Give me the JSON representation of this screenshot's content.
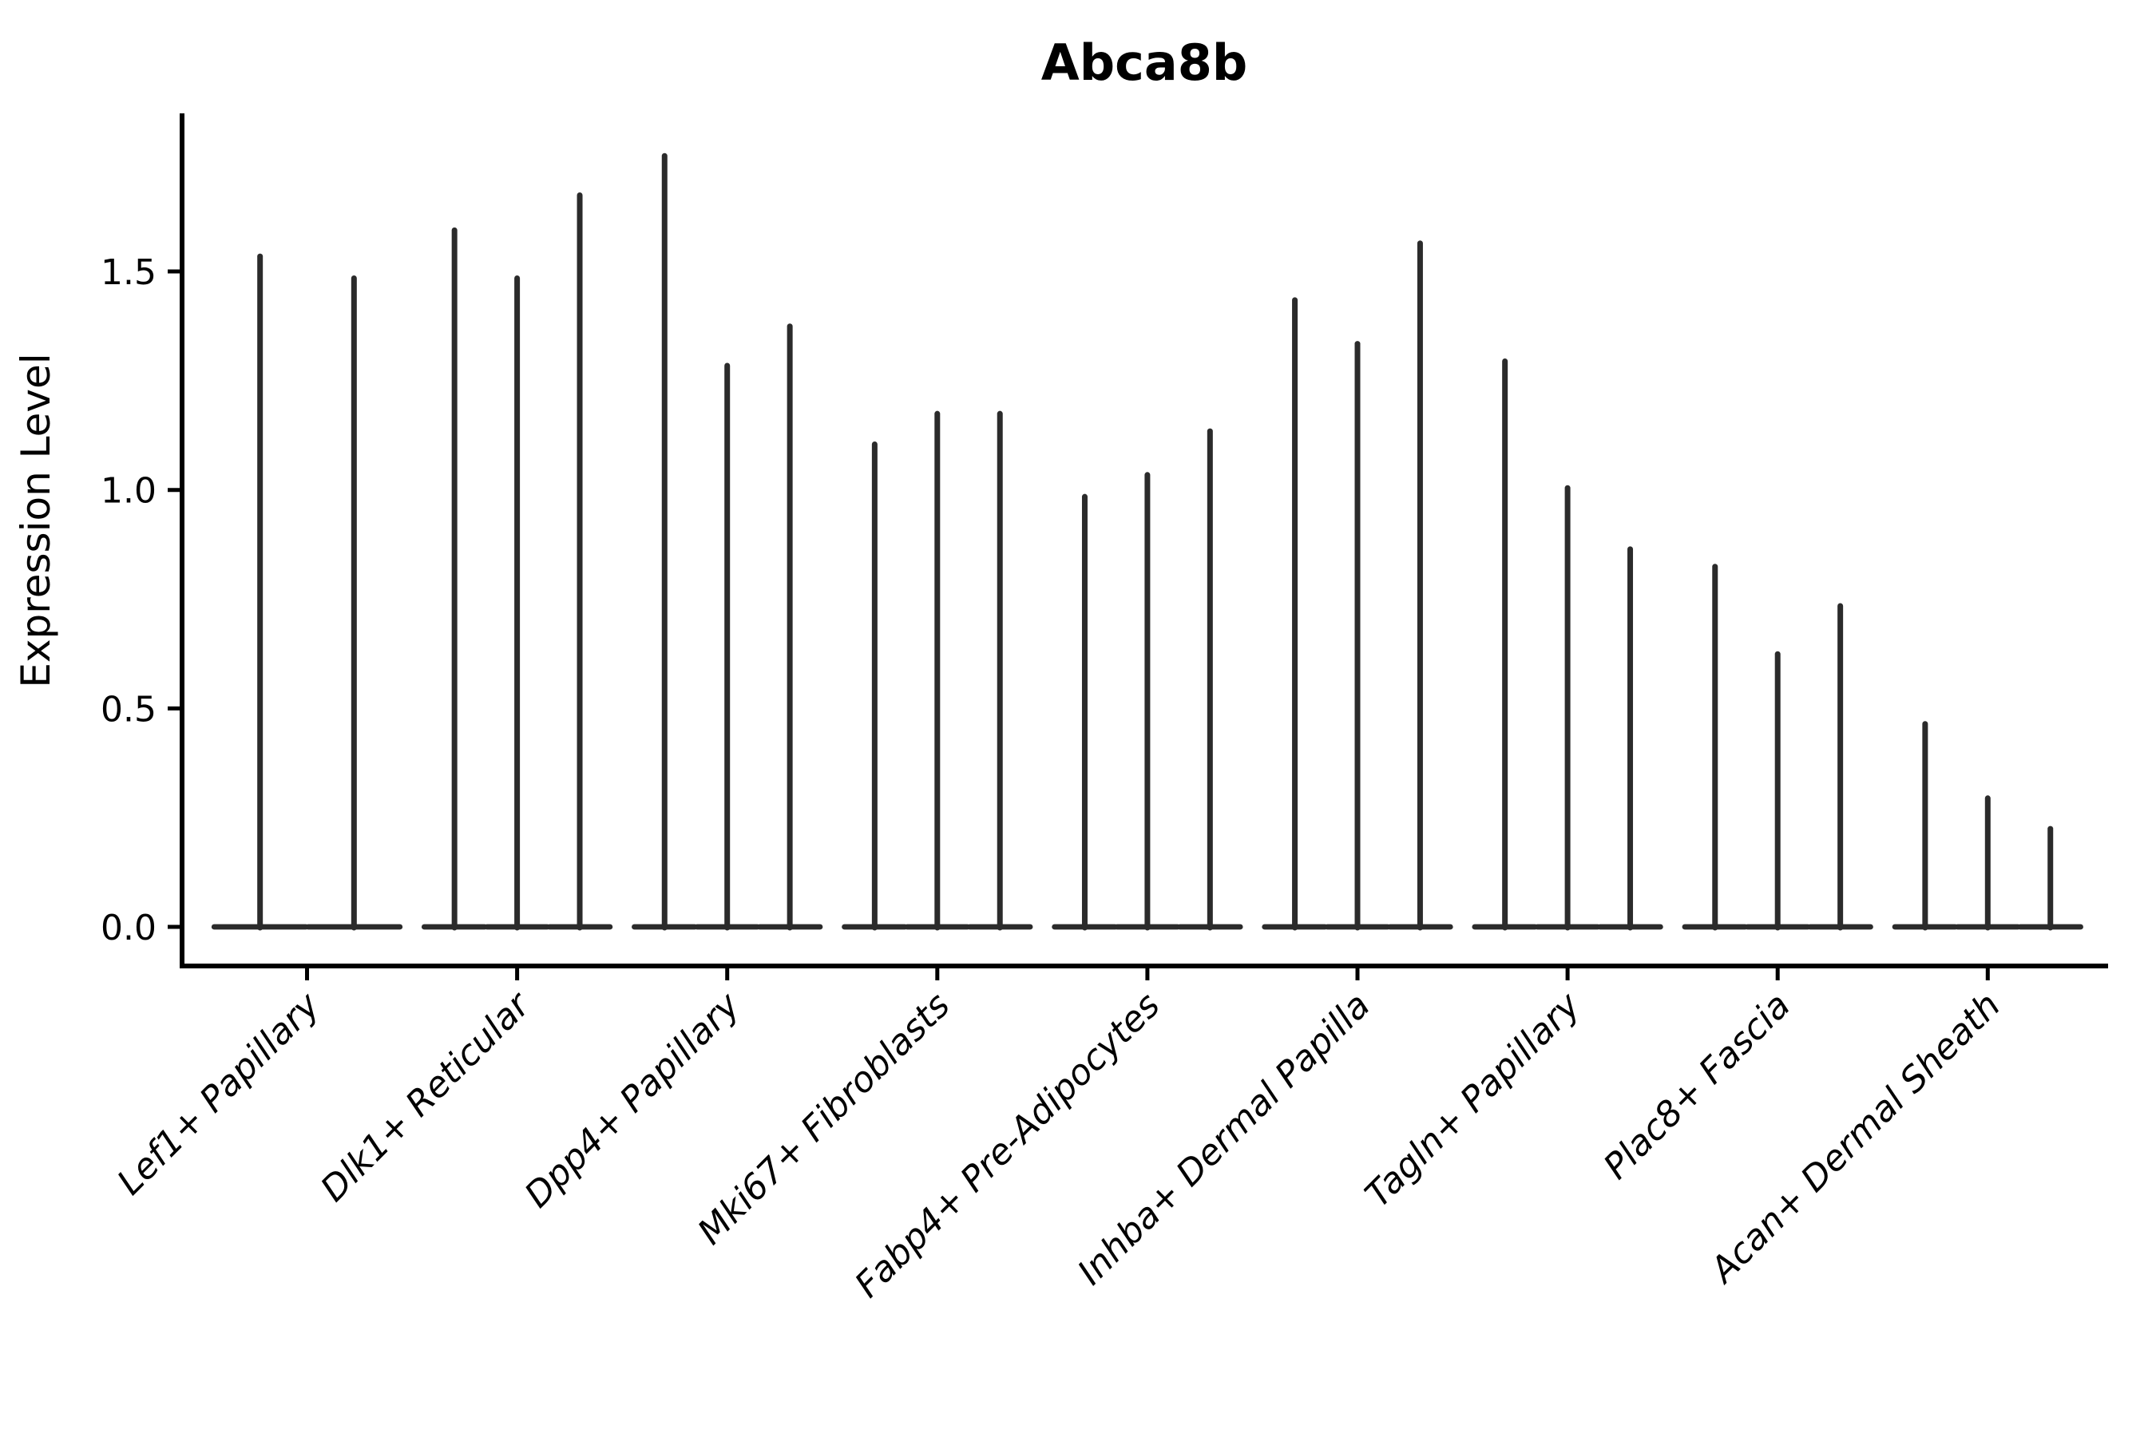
{
  "chart_data": {
    "type": "violin",
    "title": "Abca8b",
    "ylabel": "Expression Level",
    "xlabel": "",
    "ylim": [
      0,
      1.86
    ],
    "yticks": [
      "0.0",
      "0.5",
      "1.0",
      "1.5"
    ],
    "grid": false,
    "legend": "none",
    "violin_color": "#2b2b2b",
    "categories": [
      "Lef1+ Papillary",
      "Dlk1+ Reticular",
      "Dpp4+ Papillary",
      "Mki67+ Fibroblasts",
      "Fabp4+ Pre-Adipocytes",
      "Inhba+ Dermal Papilla",
      "Tagln+ Papillary",
      "Plac8+ Fascia",
      "Acan+ Dermal Sheath"
    ],
    "violins": [
      {
        "category": "Lef1+ Papillary",
        "maxima": [
          1.54,
          1.49
        ]
      },
      {
        "category": "Dlk1+ Reticular",
        "maxima": [
          1.6,
          1.49,
          1.68
        ]
      },
      {
        "category": "Dpp4+ Papillary",
        "maxima": [
          1.77,
          1.29,
          1.38
        ]
      },
      {
        "category": "Mki67+ Fibroblasts",
        "maxima": [
          1.11,
          1.18,
          1.18
        ]
      },
      {
        "category": "Fabp4+ Pre-Adipocytes",
        "maxima": [
          0.99,
          1.04,
          1.14
        ]
      },
      {
        "category": "Inhba+ Dermal Papilla",
        "maxima": [
          1.44,
          1.34,
          1.57
        ]
      },
      {
        "category": "Tagln+ Papillary",
        "maxima": [
          1.3,
          1.01,
          0.87
        ]
      },
      {
        "category": "Plac8+ Fascia",
        "maxima": [
          0.83,
          0.63,
          0.74
        ]
      },
      {
        "category": "Acan+ Dermal Sheath",
        "maxima": [
          0.47,
          0.3,
          0.23
        ]
      }
    ],
    "description": "Each violin: wide flat base at expression 0 with a thin vertical density spike up to the max expression value."
  }
}
